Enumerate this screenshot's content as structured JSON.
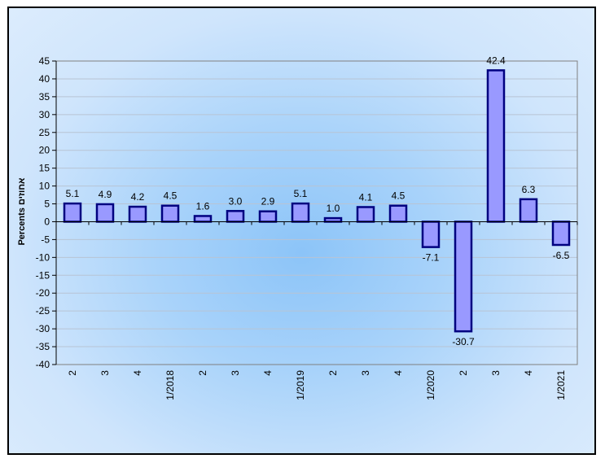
{
  "chart_data": {
    "type": "bar",
    "ylabel": "Percents אחוזים",
    "ylim": [
      -40,
      45
    ],
    "ytick_step": 5,
    "grid": true,
    "categories": [
      "2",
      "3",
      "4",
      "1/2018",
      "2",
      "3",
      "4",
      "1/2019",
      "2",
      "3",
      "4",
      "1/2020",
      "2",
      "3",
      "4",
      "1/2021"
    ],
    "values": [
      5.1,
      4.9,
      4.2,
      4.5,
      1.6,
      3.0,
      2.9,
      5.1,
      1.0,
      4.1,
      4.5,
      -7.1,
      -30.7,
      42.4,
      6.3,
      -6.5
    ],
    "data_labels": [
      "5.1",
      "4.9",
      "4.2",
      "4.5",
      "1.6",
      "3.0",
      "2.9",
      "5.1",
      "1.0",
      "4.1",
      "4.5",
      "-7.1",
      "-30.7",
      "42.4",
      "6.3",
      "-6.5"
    ],
    "colors": {
      "bar_fill": "#9999ff",
      "bar_stroke": "#000080",
      "grid": "#b8c4d4"
    }
  }
}
